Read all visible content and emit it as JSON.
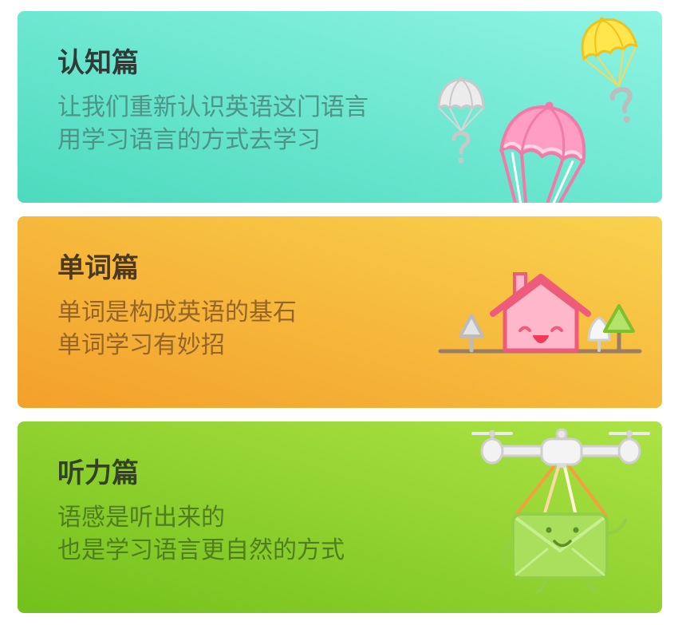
{
  "cards": [
    {
      "title": "认知篇",
      "lines": [
        "让我们重新认识英语这门语言",
        "用学习语言的方式去学习"
      ],
      "illustration_icon": "parachute-icon",
      "colors": {
        "gradient_start": "#4cdabd",
        "gradient_end": "#8ff4e4",
        "title": "#2f3b37",
        "subtitle": "#4d9386"
      }
    },
    {
      "title": "单词篇",
      "lines": [
        "单词是构成英语的基石",
        "单词学习有妙招"
      ],
      "illustration_icon": "house-icon",
      "colors": {
        "gradient_start": "#f3a02b",
        "gradient_end": "#f9d24e",
        "title": "#4b3a22",
        "subtitle": "#94642a"
      }
    },
    {
      "title": "听力篇",
      "lines": [
        "语感是听出来的",
        "也是学习语言更自然的方式"
      ],
      "illustration_icon": "drone-envelope-icon",
      "colors": {
        "gradient_start": "#73c01b",
        "gradient_end": "#ade345",
        "title": "#33431f",
        "subtitle": "#4f7d1f"
      }
    }
  ]
}
